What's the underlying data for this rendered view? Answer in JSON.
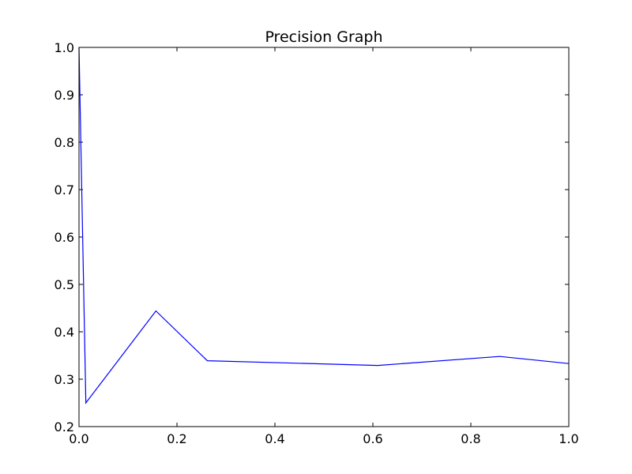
{
  "chart_data": {
    "type": "line",
    "title": "Precision Graph",
    "xlabel": "",
    "ylabel": "",
    "xlim": [
      0.0,
      1.0
    ],
    "ylim": [
      0.2,
      1.0
    ],
    "x_ticks": [
      "0.0",
      "0.2",
      "0.4",
      "0.6",
      "0.8",
      "1.0"
    ],
    "y_ticks": [
      "0.2",
      "0.3",
      "0.4",
      "0.5",
      "0.6",
      "0.7",
      "0.8",
      "0.9",
      "1.0"
    ],
    "grid": false,
    "series": [
      {
        "color": "#0000ff",
        "x": [
          0.0,
          0.014,
          0.157,
          0.262,
          0.61,
          0.859,
          1.0
        ],
        "y": [
          1.0,
          0.25,
          0.444,
          0.339,
          0.329,
          0.348,
          0.333
        ]
      }
    ]
  }
}
